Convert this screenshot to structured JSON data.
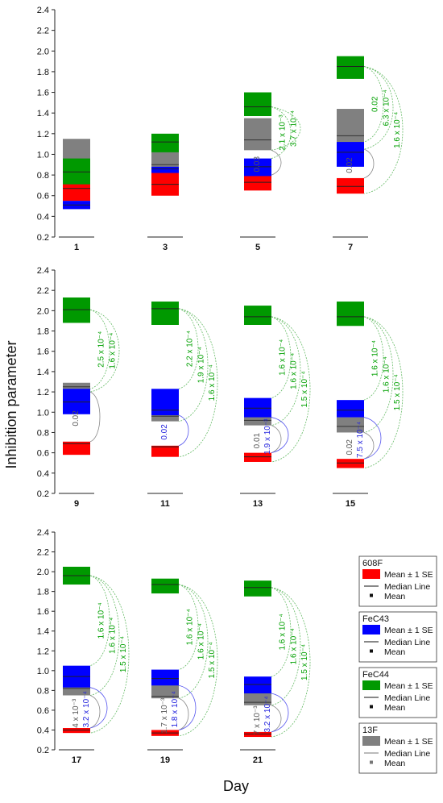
{
  "chart_data": {
    "type": "box",
    "ylabel": "Inhibition parameter",
    "xlabel": "Day",
    "ylim": [
      0.2,
      2.4
    ],
    "yticks": [
      "0.2",
      "0.4",
      "0.6",
      "0.8",
      "1.0",
      "1.2",
      "1.4",
      "1.6",
      "1.8",
      "2.0",
      "2.2",
      "2.4"
    ],
    "colors": {
      "608F": "#ff0000",
      "FeC43": "#0000ff",
      "FeC44": "#009900",
      "13F": "#808080"
    },
    "legend": [
      {
        "title": "608F",
        "color": "#ff0000",
        "items": [
          "Mean ± 1 SE",
          "Median Line",
          "Mean"
        ]
      },
      {
        "title": "FeC43",
        "color": "#0000ff",
        "items": [
          "Mean ± 1 SE",
          "Median Line",
          "Mean"
        ]
      },
      {
        "title": "FeC44",
        "color": "#009900",
        "items": [
          "Mean ± 1 SE",
          "Median Line",
          "Mean"
        ]
      },
      {
        "title": "13F",
        "color": "#808080",
        "items": [
          "Mean ± 1 SE",
          "Median Line",
          "Mean"
        ]
      }
    ],
    "days": [
      {
        "day": "1",
        "boxes": {
          "13F": [
            0.7,
            1.15,
            0.92
          ],
          "FeC44": [
            0.7,
            0.96,
            0.83
          ],
          "608F": [
            0.55,
            0.71,
            0.67
          ],
          "FeC43": [
            0.47,
            0.55,
            0.51
          ]
        },
        "pvals": []
      },
      {
        "day": "3",
        "boxes": {
          "13F": [
            0.81,
            1.04,
            0.9
          ],
          "FeC44": [
            1.02,
            1.2,
            1.12
          ],
          "608F": [
            0.6,
            0.82,
            0.71
          ],
          "FeC43": [
            0.82,
            0.88,
            0.86
          ]
        },
        "pvals": []
      },
      {
        "day": "5",
        "boxes": {
          "13F": [
            1.04,
            1.35,
            1.14
          ],
          "FeC44": [
            1.37,
            1.6,
            1.46
          ],
          "608F": [
            0.65,
            0.8,
            0.73
          ],
          "FeC43": [
            0.79,
            0.96,
            0.88
          ]
        },
        "pvals": [
          {
            "text": "2.1 x 10⁻³",
            "color": "green"
          },
          {
            "text": "3.7 x 10⁻⁴",
            "color": "green"
          },
          {
            "text": "0.03",
            "color": "gray"
          }
        ]
      },
      {
        "day": "7",
        "boxes": {
          "13F": [
            1.05,
            1.44,
            1.18
          ],
          "FeC44": [
            1.73,
            1.95,
            1.85
          ],
          "608F": [
            0.62,
            0.77,
            0.69
          ],
          "FeC43": [
            0.88,
            1.12,
            1.02
          ]
        },
        "pvals": [
          {
            "text": "0.02",
            "color": "green"
          },
          {
            "text": "6.3 x 10⁻⁴",
            "color": "green"
          },
          {
            "text": "1.6 x 10⁻⁴",
            "color": "green"
          },
          {
            "text": "0.02",
            "color": "gray"
          }
        ]
      },
      {
        "day": "9",
        "boxes": {
          "13F": [
            1.2,
            1.29,
            1.25
          ],
          "FeC44": [
            1.88,
            2.13,
            2.01
          ],
          "608F": [
            0.58,
            0.71,
            0.69
          ],
          "FeC43": [
            0.98,
            1.23,
            1.1
          ]
        },
        "pvals": [
          {
            "text": "2.5 x 10⁻⁴",
            "color": "green"
          },
          {
            "text": "1.6 x 10⁻⁴",
            "color": "green"
          },
          {
            "text": "0.02",
            "color": "gray"
          }
        ]
      },
      {
        "day": "11",
        "boxes": {
          "13F": [
            0.91,
            1.0,
            0.96
          ],
          "FeC44": [
            1.86,
            2.09,
            2.02
          ],
          "608F": [
            0.56,
            0.67,
            0.66
          ],
          "FeC43": [
            0.97,
            1.23,
            1.02
          ]
        },
        "pvals": [
          {
            "text": "2.2 x 10⁻⁴",
            "color": "green"
          },
          {
            "text": "1.9 x 10⁻⁴",
            "color": "green"
          },
          {
            "text": "1.6 x 10⁻⁴",
            "color": "green"
          },
          {
            "text": "0.02",
            "color": "blue"
          }
        ]
      },
      {
        "day": "13",
        "boxes": {
          "13F": [
            0.87,
            0.98,
            0.92
          ],
          "FeC44": [
            1.86,
            2.05,
            1.94
          ],
          "608F": [
            0.51,
            0.6,
            0.56
          ],
          "FeC43": [
            0.95,
            1.14,
            1.04
          ]
        },
        "pvals": [
          {
            "text": "1.6 x 10⁻⁴",
            "color": "green"
          },
          {
            "text": "1.6 x 10⁻⁴",
            "color": "green"
          },
          {
            "text": "1.5 x 10⁻⁴",
            "color": "green"
          },
          {
            "text": "0.01",
            "color": "gray"
          },
          {
            "text": "1.9 x 10⁻³",
            "color": "blue"
          }
        ]
      },
      {
        "day": "15",
        "boxes": {
          "13F": [
            0.8,
            0.95,
            0.86
          ],
          "FeC44": [
            1.85,
            2.09,
            1.94
          ],
          "608F": [
            0.45,
            0.54,
            0.5
          ],
          "FeC43": [
            0.95,
            1.12,
            1.02
          ]
        },
        "pvals": [
          {
            "text": "1.6 x 10⁻⁴",
            "color": "green"
          },
          {
            "text": "1.6 x 10⁻⁴",
            "color": "green"
          },
          {
            "text": "1.5 x 10⁻⁴",
            "color": "green"
          },
          {
            "text": "0.02",
            "color": "gray"
          },
          {
            "text": "7.5 x 10⁻⁴",
            "color": "blue"
          }
        ]
      },
      {
        "day": "17",
        "boxes": {
          "13F": [
            0.75,
            0.86,
            0.82
          ],
          "FeC44": [
            1.87,
            2.05,
            1.96
          ],
          "608F": [
            0.37,
            0.42,
            0.4
          ],
          "FeC43": [
            0.83,
            1.05,
            0.94
          ]
        },
        "pvals": [
          {
            "text": "1.6 x 10⁻⁴",
            "color": "green"
          },
          {
            "text": "1.6 x 10⁻⁴",
            "color": "green"
          },
          {
            "text": "1.5 x 10⁻⁴",
            "color": "green"
          },
          {
            "text": "4 x 10⁻³",
            "color": "gray"
          },
          {
            "text": "3.2 x 10⁻⁴",
            "color": "blue"
          }
        ]
      },
      {
        "day": "19",
        "boxes": {
          "13F": [
            0.72,
            0.86,
            0.74
          ],
          "FeC44": [
            1.78,
            1.93,
            1.87
          ],
          "608F": [
            0.34,
            0.4,
            0.37
          ],
          "FeC43": [
            0.85,
            1.01,
            0.92
          ]
        },
        "pvals": [
          {
            "text": "1.6 x 10⁻⁴",
            "color": "green"
          },
          {
            "text": "1.6 x 10⁻⁴",
            "color": "green"
          },
          {
            "text": "1.5 x 10⁻⁴",
            "color": "green"
          },
          {
            "text": "1.7 x 10⁻³",
            "color": "gray"
          },
          {
            "text": "1.8 x 10⁻⁴",
            "color": "blue"
          }
        ]
      },
      {
        "day": "21",
        "boxes": {
          "13F": [
            0.65,
            0.78,
            0.68
          ],
          "FeC44": [
            1.75,
            1.91,
            1.84
          ],
          "608F": [
            0.33,
            0.38,
            0.36
          ],
          "FeC43": [
            0.77,
            0.94,
            0.86
          ]
        },
        "pvals": [
          {
            "text": "1.6 x 10⁻⁴",
            "color": "green"
          },
          {
            "text": "1.6 x 10⁻⁴",
            "color": "green"
          },
          {
            "text": "1.5 x 10⁻⁴",
            "color": "green"
          },
          {
            "text": "7 x 10⁻³",
            "color": "gray"
          },
          {
            "text": "3.2 x 10⁻⁴",
            "color": "blue"
          }
        ]
      }
    ]
  }
}
